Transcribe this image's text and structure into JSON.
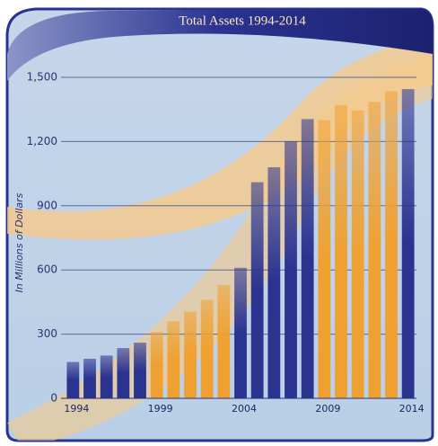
{
  "chart_data": {
    "type": "bar",
    "title": "Total Assets 1994-2014",
    "y_label": "In Millions of Dollars",
    "categories": [
      "1994",
      null,
      null,
      null,
      null,
      "1999",
      null,
      null,
      null,
      null,
      "2004",
      null,
      null,
      null,
      null,
      "2009",
      null,
      null,
      null,
      null,
      "2014"
    ],
    "values": [
      170,
      185,
      200,
      235,
      260,
      310,
      360,
      405,
      460,
      530,
      610,
      1010,
      1080,
      1200,
      1305,
      1300,
      1370,
      1345,
      1385,
      1435,
      1445
    ],
    "colors": [
      "#2a3390",
      "#2a3390",
      "#2a3390",
      "#2a3390",
      "#2a3390",
      "#f0a030",
      "#f0a030",
      "#f0a030",
      "#f0a030",
      "#f0a030",
      "#2a3390",
      "#2a3390",
      "#2a3390",
      "#2a3390",
      "#2a3390",
      "#f0a030",
      "#f0a030",
      "#f0a030",
      "#f0a030",
      "#f0a030",
      "#2a3390"
    ],
    "ylim": [
      0,
      1500
    ],
    "yticks": [
      0,
      300,
      600,
      900,
      {
        "value": 1200,
        "label": "1,200"
      },
      {
        "value": 1500,
        "label": "1,500"
      }
    ],
    "grid": true
  }
}
